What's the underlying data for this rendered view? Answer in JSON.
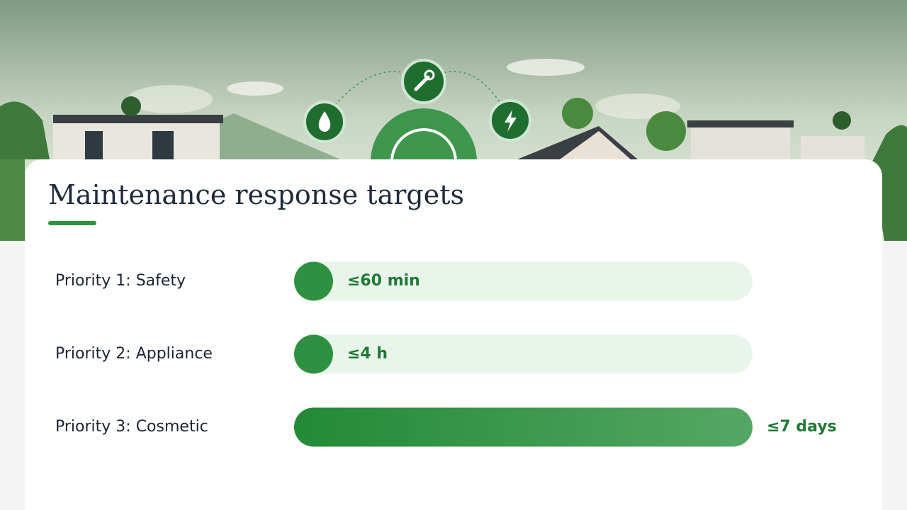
{
  "chart_data": {
    "type": "bar",
    "orientation": "horizontal",
    "title": "Maintenance response targets",
    "categories": [
      "Priority 1: Safety",
      "Priority 2: Appliance",
      "Priority 3: Cosmetic"
    ],
    "values": [
      1,
      4,
      168
    ],
    "value_labels": [
      "≤60 min",
      "≤4 h",
      "≤7 days"
    ],
    "color": "#2e9142",
    "track_color": "#e9f4eb",
    "xlim": [
      0,
      168
    ]
  }
}
